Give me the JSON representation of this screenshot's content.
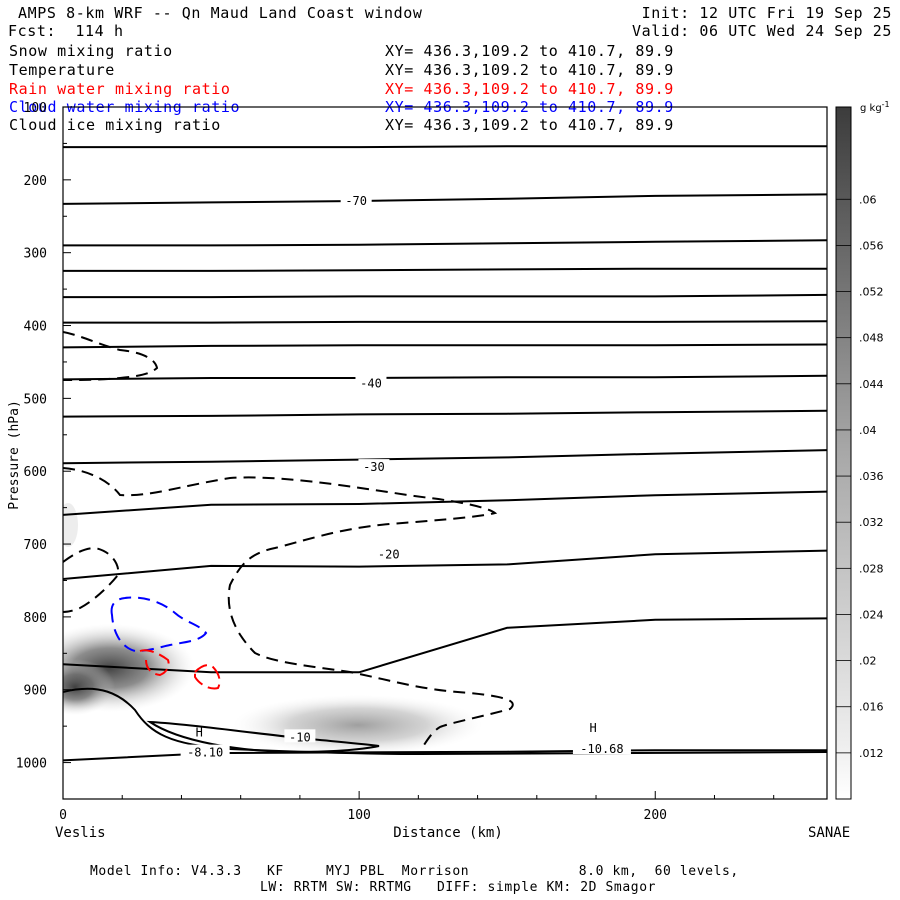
{
  "header": {
    "title": "AMPS 8-km WRF -- Qn Maud Land Coast window",
    "fcst": "Fcst:  114 h",
    "init": "Init: 12 UTC Fri 19 Sep 25",
    "valid": "Valid: 06 UTC Wed 24 Sep 25"
  },
  "legend": [
    {
      "label": "Snow mixing ratio",
      "xy": "XY= 436.3,109.2 to 410.7, 89.9",
      "color": "#000000"
    },
    {
      "label": "Temperature",
      "xy": "XY= 436.3,109.2 to 410.7, 89.9",
      "color": "#000000"
    },
    {
      "label": "Rain water mixing ratio",
      "xy": "XY= 436.3,109.2 to 410.7, 89.9",
      "color": "#ff0000"
    },
    {
      "label": "Cloud water mixing ratio",
      "xy": "XY= 436.3,109.2 to 410.7, 89.9",
      "color": "#0000ff"
    },
    {
      "label": "Cloud ice mixing ratio",
      "xy": "XY= 436.3,109.2 to 410.7, 89.9",
      "color": "#000000"
    }
  ],
  "footer": {
    "line1": "Model Info: V4.3.3   KF     MYJ PBL  Morrison             8.0 km,  60 levels,",
    "line2": "LW: RRTM SW: RRTMG   DIFF: simple KM: 2D Smagor"
  },
  "chart_data": {
    "type": "contour",
    "xlabel": "Distance (km)",
    "ylabel": "Pressure (hPa)",
    "xlim": [
      0,
      258
    ],
    "ylim": [
      1050,
      100
    ],
    "x_ticks": [
      0,
      100,
      200
    ],
    "y_ticks": [
      100,
      200,
      300,
      400,
      500,
      600,
      700,
      800,
      900,
      1000
    ],
    "x_start_label": "Veslis",
    "x_end_label": "SANAE",
    "colorbar": {
      "unit": "g kg",
      "unit_exp": "-1",
      "ticks": [
        ".012",
        ".016",
        ".02",
        ".024",
        ".028",
        ".032",
        ".036",
        ".04",
        ".044",
        ".048",
        ".052",
        ".056",
        ".06"
      ]
    },
    "temperature_labels": [
      {
        "text": "-70",
        "x": 99,
        "p": 228
      },
      {
        "text": "-40",
        "x": 104,
        "p": 478
      },
      {
        "text": "-30",
        "x": 105,
        "p": 593
      },
      {
        "text": "-20",
        "x": 110,
        "p": 713
      },
      {
        "text": "-10",
        "x": 80,
        "p": 964
      },
      {
        "text": "-8.10",
        "x": 48,
        "p": 985
      },
      {
        "text": "-10.68",
        "x": 182,
        "p": 980
      }
    ],
    "highs": [
      {
        "text": "H",
        "x": 46,
        "p": 964
      },
      {
        "text": "H",
        "x": 179,
        "p": 958
      }
    ],
    "isotherms_x": [
      0,
      50,
      100,
      150,
      200,
      258
    ],
    "isotherms_p": [
      [
        155,
        155,
        155,
        154,
        154,
        154
      ],
      [
        233,
        231,
        229,
        226,
        222,
        220
      ],
      [
        290,
        290,
        289,
        287,
        285,
        283
      ],
      [
        325,
        325,
        324,
        323,
        322,
        322
      ],
      [
        361,
        361,
        360,
        360,
        360,
        358
      ],
      [
        396,
        396,
        395,
        395,
        395,
        394
      ],
      [
        430,
        428,
        427,
        427,
        427,
        426
      ],
      [
        474,
        472,
        472,
        471,
        471,
        469
      ],
      [
        525,
        524,
        522,
        521,
        519,
        517
      ],
      [
        589,
        587,
        584,
        581,
        576,
        571
      ],
      [
        660,
        646,
        645,
        640,
        633,
        628
      ],
      [
        748,
        730,
        731,
        728,
        714,
        709
      ],
      [
        865,
        876,
        876,
        815,
        804,
        802
      ],
      [
        997,
        987,
        986,
        985,
        983,
        983
      ]
    ]
  }
}
